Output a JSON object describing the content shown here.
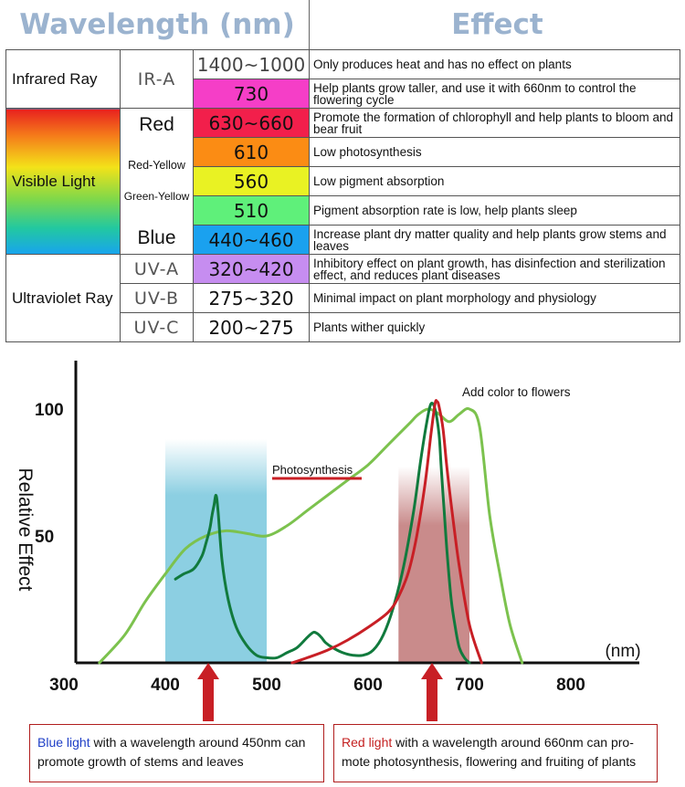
{
  "table": {
    "headers": {
      "wavelength": "Wavelength (nm)",
      "effect": "Effect"
    },
    "rows": [
      {
        "category": "Infrared Ray",
        "band": "IR-A",
        "wavelength": "1400~1000",
        "color": "#ffffff",
        "effect": "Only produces heat and has no effect on plants"
      },
      {
        "wavelength": "730",
        "color": "#f53ec7",
        "effect": "Help plants grow taller, and use it with 660nm to control the flowering cycle"
      },
      {
        "category": "Visible Light",
        "band": "Red",
        "wavelength": "630~660",
        "color": "#f21f4b",
        "effect": "Promote the formation of chlorophyll and help plants to bloom and bear fruit"
      },
      {
        "band": "Red-Yellow",
        "wavelength": "610",
        "color": "#fb8c14",
        "effect": "Low photosynthesis"
      },
      {
        "band": "Green-Yellow",
        "wavelength": "560",
        "color": "#e9f223",
        "effect": "Low pigment absorption"
      },
      {
        "wavelength": "510",
        "color": "#5ff07a",
        "effect": "Pigment absorption rate is low, help plants sleep"
      },
      {
        "band": "Blue",
        "wavelength": "440~460",
        "color": "#1aa1ef",
        "effect": "Increase plant dry matter quality and help plants grow stems and leaves"
      },
      {
        "category": "Ultraviolet Ray",
        "band": "UV-A",
        "wavelength": "320~420",
        "color": "#c68df0",
        "effect": "Inhibitory effect on plant growth, has disinfection and sterilization effect, and reduces plant diseases"
      },
      {
        "band": "UV-B",
        "wavelength": "275~320",
        "color": "#ffffff",
        "effect": "Minimal impact on plant morphology and physiology"
      },
      {
        "band": "UV-C",
        "wavelength": "200~275",
        "color": "#ffffff",
        "effect": "Plants wither quickly"
      }
    ]
  },
  "chart_data": {
    "type": "line",
    "ylabel": "Relative Effect",
    "xlabel": "(nm)",
    "x_ticks": [
      300,
      400,
      500,
      600,
      700,
      800
    ],
    "y_ticks": [
      50,
      100
    ],
    "xlim": [
      300,
      820
    ],
    "ylim": [
      0,
      105
    ],
    "shaded_regions": [
      {
        "name": "blue band",
        "x": [
          400,
          500
        ],
        "color": "#8ccfe2"
      },
      {
        "name": "red band",
        "x": [
          630,
          700
        ],
        "color": "#c98b8b"
      }
    ],
    "annotations": [
      {
        "text": "Add color to flowers",
        "x": 660,
        "y": 103
      },
      {
        "text": "Photosynthesis",
        "x": 460,
        "y": 74
      }
    ],
    "series": [
      {
        "color": "#7cc24e",
        "x": [
          335,
          360,
          380,
          400,
          420,
          440,
          460,
          480,
          500,
          520,
          540,
          560,
          580,
          600,
          620,
          640,
          650,
          660,
          670,
          680,
          690,
          700,
          710,
          720,
          730,
          740,
          752
        ],
        "y": [
          0,
          11,
          24,
          35,
          45,
          50,
          52,
          51,
          50,
          54,
          60,
          66,
          72,
          78,
          86,
          94,
          98,
          100,
          98,
          95,
          98,
          100,
          93,
          58,
          35,
          15,
          0
        ]
      },
      {
        "color": "#117a3d",
        "x": [
          410,
          418,
          428,
          436,
          440,
          444,
          446,
          448,
          450,
          452,
          456,
          462,
          470,
          480,
          490,
          500,
          510,
          520,
          530,
          540,
          546,
          550,
          554,
          558,
          565,
          575,
          585,
          595,
          605,
          615,
          625,
          635,
          645,
          652,
          658,
          662,
          666,
          670,
          672,
          675,
          678,
          682,
          686,
          690,
          695,
          700
        ],
        "y": [
          33,
          35,
          37,
          42,
          47,
          53,
          58,
          62,
          66,
          60,
          40,
          25,
          14,
          7,
          3,
          2,
          2,
          4,
          6,
          10,
          12,
          11.5,
          10,
          8,
          6,
          4,
          3,
          3,
          5,
          11,
          22,
          38,
          60,
          80,
          95,
          102,
          100,
          90,
          78,
          60,
          43,
          25,
          14,
          6,
          2,
          0
        ]
      },
      {
        "color": "#c81f25",
        "x": [
          525,
          540,
          560,
          580,
          600,
          620,
          630,
          640,
          648,
          656,
          662,
          666,
          668,
          670,
          674,
          678,
          684,
          690,
          700,
          712
        ],
        "y": [
          0,
          2,
          5,
          9,
          14,
          20,
          26,
          36,
          50,
          70,
          90,
          102,
          103,
          101,
          92,
          76,
          56,
          38,
          15,
          0
        ]
      }
    ]
  },
  "notes": {
    "left_highlight": "Blue light",
    "left_text": " with a wavelength around 450nm can promote growth of stems and leaves",
    "right_highlight": "Red light",
    "right_text": " with a wavelength around 660nm can pro-mote  photosynthesis, flowering and fruiting of plants"
  }
}
